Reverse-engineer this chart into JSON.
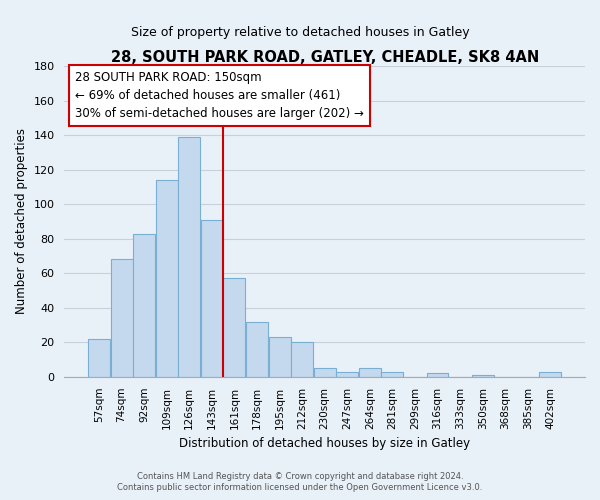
{
  "title": "28, SOUTH PARK ROAD, GATLEY, CHEADLE, SK8 4AN",
  "subtitle": "Size of property relative to detached houses in Gatley",
  "xlabel": "Distribution of detached houses by size in Gatley",
  "ylabel": "Number of detached properties",
  "bar_labels": [
    "57sqm",
    "74sqm",
    "92sqm",
    "109sqm",
    "126sqm",
    "143sqm",
    "161sqm",
    "178sqm",
    "195sqm",
    "212sqm",
    "230sqm",
    "247sqm",
    "264sqm",
    "281sqm",
    "299sqm",
    "316sqm",
    "333sqm",
    "350sqm",
    "368sqm",
    "385sqm",
    "402sqm"
  ],
  "bar_values": [
    22,
    68,
    83,
    114,
    139,
    91,
    57,
    32,
    23,
    20,
    5,
    3,
    5,
    3,
    0,
    2,
    0,
    1,
    0,
    0,
    3
  ],
  "bar_color": "#c5d9ee",
  "bar_edge_color": "#7aafd4",
  "vline_color": "#cc0000",
  "ylim": [
    0,
    180
  ],
  "yticks": [
    0,
    20,
    40,
    60,
    80,
    100,
    120,
    140,
    160,
    180
  ],
  "annotation_lines": [
    "28 SOUTH PARK ROAD: 150sqm",
    "← 69% of detached houses are smaller (461)",
    "30% of semi-detached houses are larger (202) →"
  ],
  "footer_line1": "Contains HM Land Registry data © Crown copyright and database right 2024.",
  "footer_line2": "Contains public sector information licensed under the Open Government Licence v3.0.",
  "background_color": "#e8f0f8",
  "plot_bg_color": "#e8f0f8",
  "grid_color": "#c8d0dc"
}
